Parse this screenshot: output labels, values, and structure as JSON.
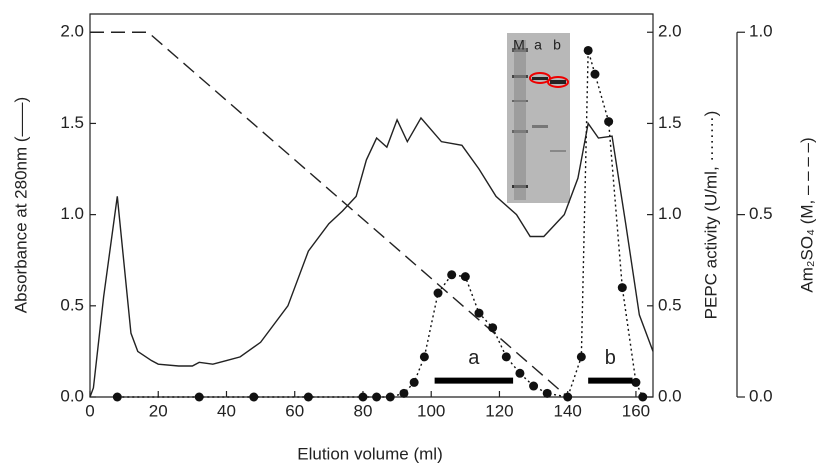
{
  "chart_data": {
    "type": "line",
    "xlabel": "Elution volume (ml)",
    "ylabel": "Absorbance at 280nm (——)",
    "y2label": "PEPC activity (U/ml, ········)",
    "y3label": "Am₂SO₄ (M, – – – –)",
    "xlim": [
      0,
      165
    ],
    "ylim": [
      0,
      2.1
    ],
    "y2lim": [
      0,
      2.1
    ],
    "y3lim": [
      0,
      1.05
    ],
    "xticks": [
      0,
      20,
      40,
      60,
      80,
      100,
      120,
      140,
      160
    ],
    "yticks": [
      {
        "value": 0,
        "label": "0.0"
      },
      {
        "value": 0.5,
        "label": "0.5"
      },
      {
        "value": 1,
        "label": "1.0"
      },
      {
        "value": 1.5,
        "label": "1.5"
      },
      {
        "value": 2,
        "label": "2.0"
      }
    ],
    "y2ticks": [
      {
        "value": 0,
        "label": "0.0"
      },
      {
        "value": 0.5,
        "label": "0.5"
      },
      {
        "value": 1,
        "label": "1.0"
      },
      {
        "value": 1.5,
        "label": "1.5"
      },
      {
        "value": 2,
        "label": "2.0"
      }
    ],
    "y3ticks": [
      {
        "value": 0,
        "label": "0.0"
      },
      {
        "value": 0.5,
        "label": "0.5"
      },
      {
        "value": 1,
        "label": "1.0"
      }
    ],
    "series": [
      {
        "style": "solid",
        "color": "#222222",
        "axis": "y",
        "x": [
          0,
          1,
          4,
          8,
          12,
          14,
          18,
          20,
          26,
          30,
          32,
          36,
          40,
          44,
          50,
          58,
          64,
          70,
          74,
          78,
          81,
          84,
          87,
          90,
          93,
          97,
          103,
          109,
          114,
          119,
          125,
          129,
          133,
          139,
          143,
          146,
          149,
          153,
          157,
          161,
          165
        ],
        "values": [
          0,
          0.05,
          0.55,
          1.1,
          0.35,
          0.25,
          0.2,
          0.18,
          0.17,
          0.17,
          0.19,
          0.18,
          0.2,
          0.22,
          0.3,
          0.5,
          0.8,
          0.95,
          1.02,
          1.1,
          1.3,
          1.42,
          1.37,
          1.52,
          1.4,
          1.53,
          1.4,
          1.38,
          1.25,
          1.1,
          1.0,
          0.88,
          0.88,
          1.0,
          1.2,
          1.5,
          1.42,
          1.43,
          0.95,
          0.45,
          0.25
        ]
      },
      {
        "style": "dashed",
        "color": "#222222",
        "axis": "y3",
        "x": [
          0,
          17,
          140
        ],
        "values": [
          1,
          1,
          0
        ]
      },
      {
        "style": "dotted",
        "color": "#111111",
        "axis": "y2",
        "x": [
          8,
          32,
          48,
          64,
          80,
          84,
          88,
          92,
          95,
          98,
          102,
          106,
          110,
          114,
          118,
          122,
          126,
          130,
          134,
          140,
          144,
          146,
          148,
          152,
          156,
          160,
          162
        ],
        "values": [
          0,
          0,
          0,
          0,
          0,
          0,
          0,
          0.02,
          0.08,
          0.22,
          0.57,
          0.67,
          0.66,
          0.46,
          0.38,
          0.22,
          0.13,
          0.06,
          0.02,
          0,
          0.22,
          1.9,
          1.77,
          1.51,
          0.6,
          0.08,
          0
        ]
      }
    ],
    "annotations": [
      {
        "label": "a",
        "x": [
          101,
          124
        ],
        "y": 0.09
      },
      {
        "label": "b",
        "x": [
          146,
          159
        ],
        "y": 0.09
      }
    ],
    "inset_lanes": [
      "M",
      "a",
      "b"
    ]
  }
}
